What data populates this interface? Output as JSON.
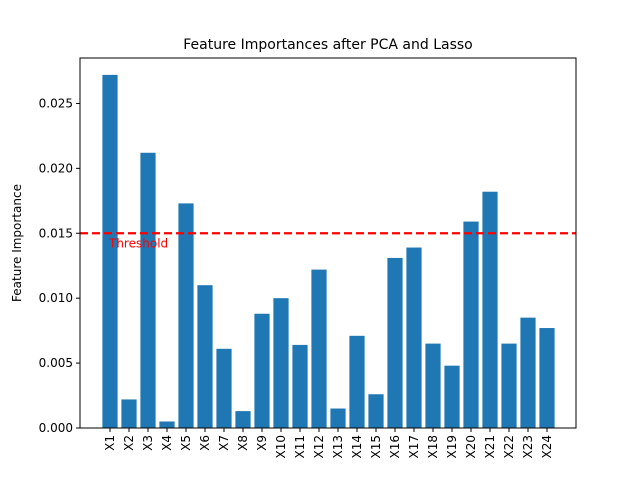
{
  "chart_data": {
    "type": "bar",
    "title": "Feature Importances after PCA and Lasso",
    "xlabel": "",
    "ylabel": "Feature Importance",
    "categories": [
      "X1",
      "X2",
      "X3",
      "X4",
      "X5",
      "X6",
      "X7",
      "X8",
      "X9",
      "X10",
      "X11",
      "X12",
      "X13",
      "X14",
      "X15",
      "X16",
      "X17",
      "X18",
      "X19",
      "X20",
      "X21",
      "X22",
      "X23",
      "X24"
    ],
    "values": [
      0.0272,
      0.0022,
      0.0212,
      0.0005,
      0.0173,
      0.011,
      0.0061,
      0.0013,
      0.0088,
      0.01,
      0.0064,
      0.0122,
      0.0015,
      0.0071,
      0.0026,
      0.0131,
      0.0139,
      0.0065,
      0.0048,
      0.0159,
      0.0182,
      0.0065,
      0.0085,
      0.0077
    ],
    "ylim": [
      0,
      0.0285
    ],
    "yticks": [
      "0.000",
      "0.005",
      "0.010",
      "0.015",
      "0.020",
      "0.025"
    ],
    "grid": false,
    "bar_color": "#1f77b4",
    "threshold": {
      "value": 0.015,
      "label": "Threshold",
      "color": "#ff0000",
      "style": "dashed"
    }
  }
}
